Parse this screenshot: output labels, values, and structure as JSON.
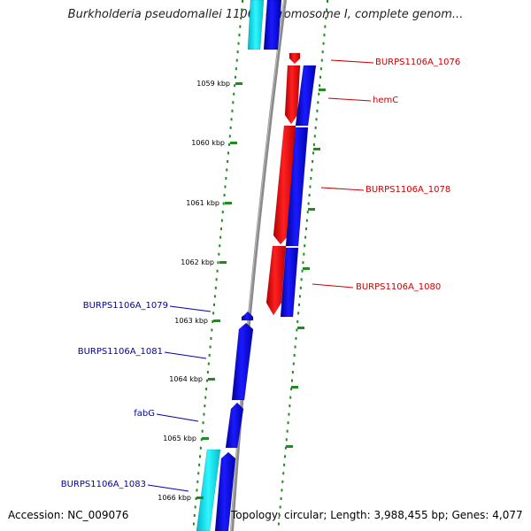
{
  "title": "Burkholderia pseudomallei 1106a chromosome I, complete genom...",
  "footer": {
    "accession": "Accession: NC_009076",
    "summary": "Topology: circular; Length: 3,988,455 bp; Genes: 4,077"
  },
  "kbp_ticks": [
    "1059 kbp",
    "1060 kbp",
    "1061 kbp",
    "1062 kbp",
    "1063 kbp",
    "1064 kbp",
    "1065 kbp",
    "1066 kbp"
  ],
  "forward_genes": [
    "BURPS1106A_1076",
    "hemC",
    "BURPS1106A_1078",
    "BURPS1106A_1080"
  ],
  "reverse_genes": [
    "BURPS1106A_1079",
    "BURPS1106A_1081",
    "fabG",
    "BURPS1106A_1083"
  ],
  "colors": {
    "forward_label": "#cc0000",
    "reverse_label": "#0000aa",
    "red_gene": "#ff0000",
    "blue_gene": "#0000ee",
    "cyan_gene": "#00e5ee",
    "backbone": "#888888",
    "tick_dots": "#1e8c1e"
  }
}
